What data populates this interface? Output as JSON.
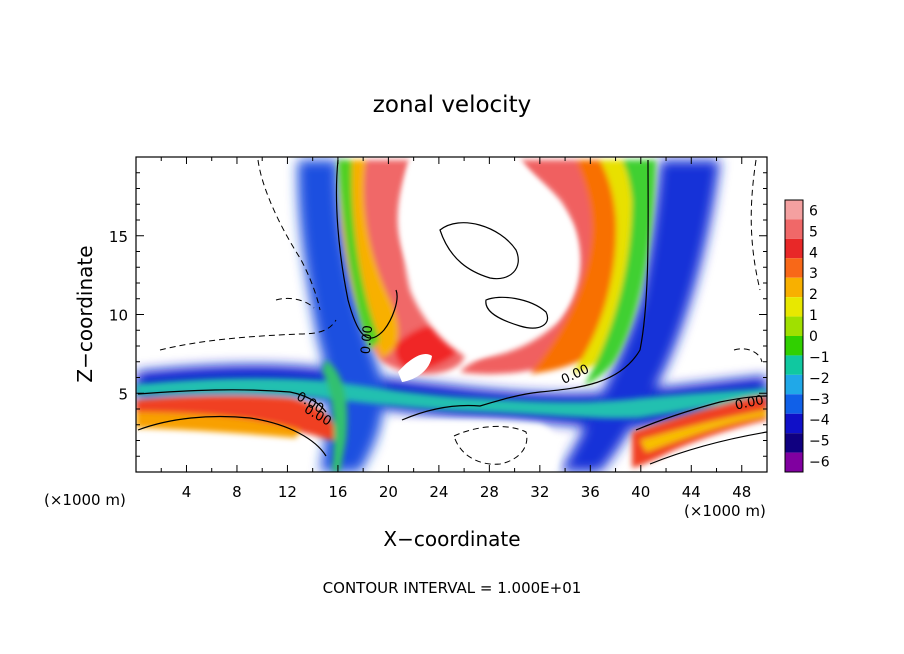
{
  "chart_data": {
    "type": "heatmap",
    "title": "zonal velocity",
    "xlabel": "X−coordinate",
    "ylabel": "Z−coordinate",
    "x_unit_left": "(×1000 m)",
    "x_unit_right": "(×1000 m)",
    "footer": "CONTOUR INTERVAL = 1.000E+01",
    "xlim": [
      0,
      50
    ],
    "ylim": [
      0,
      20
    ],
    "x_ticks": [
      4,
      8,
      12,
      16,
      20,
      24,
      28,
      32,
      36,
      40,
      44,
      48
    ],
    "x_tick_labels": [
      "4",
      "8",
      "12",
      "16",
      "20",
      "24",
      "28",
      "32",
      "36",
      "40",
      "44",
      "48"
    ],
    "y_ticks": [
      5,
      10,
      15
    ],
    "y_tick_labels": [
      "5",
      "10",
      "15"
    ],
    "colorbar": {
      "levels": [
        6,
        5,
        4,
        3,
        2,
        1,
        0,
        -1,
        -2,
        -3,
        -4,
        -5,
        -6
      ],
      "labels": [
        "6",
        "5",
        "4",
        "3",
        "2",
        "1",
        "0",
        "−1",
        "−2",
        "−3",
        "−4",
        "−5",
        "−6"
      ],
      "colors": [
        "#f4a0a0",
        "#f06868",
        "#e82828",
        "#f86818",
        "#f8b000",
        "#e8e800",
        "#a0e000",
        "#30d000",
        "#10c8a0",
        "#20a8e8",
        "#1060e8",
        "#1010c8",
        "#100080",
        "#8000a0"
      ]
    },
    "contour_labels": [
      {
        "text": "0.00",
        "x": 18.3,
        "z": 8.4,
        "angle": -85
      },
      {
        "text": "0.00",
        "x": 13.8,
        "z": 4.4,
        "angle": 30
      },
      {
        "text": "0.00",
        "x": 14.4,
        "z": 3.6,
        "angle": 30
      },
      {
        "text": "0.00",
        "x": 34.8,
        "z": 6.2,
        "angle": -25
      },
      {
        "text": "0.00",
        "x": 48.6,
        "z": 4.4,
        "angle": -12
      }
    ],
    "regions": [
      {
        "name": "westward-shear-layer",
        "note": "negative velocity band near z 5-6"
      },
      {
        "name": "eastward-jet-plume",
        "note": "positive velocity plume rising x 30-40"
      }
    ]
  }
}
